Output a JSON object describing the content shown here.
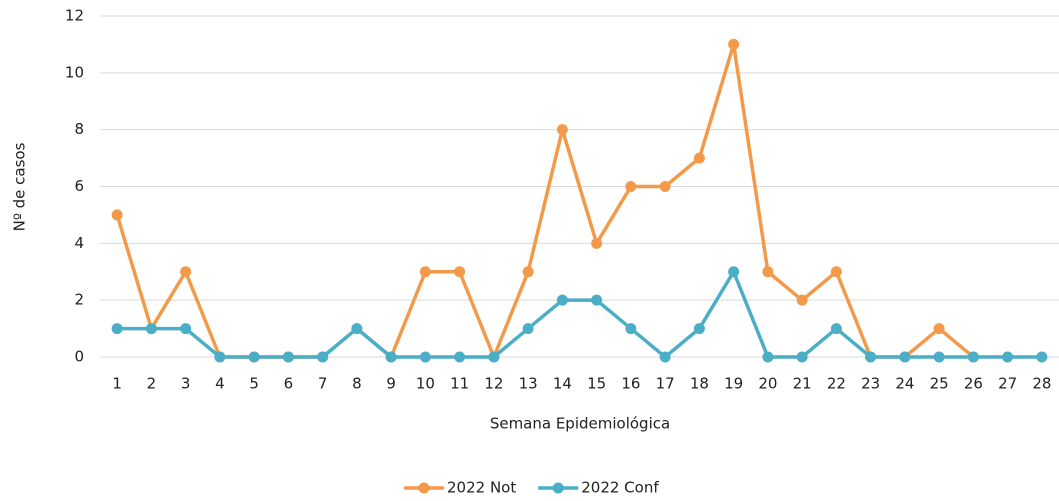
{
  "chart_data": {
    "type": "line",
    "x_label": "Semana Epidemiológica",
    "y_label": "Nº de casos",
    "categories": [
      "1",
      "2",
      "3",
      "4",
      "5",
      "6",
      "7",
      "8",
      "9",
      "10",
      "11",
      "12",
      "13",
      "14",
      "15",
      "16",
      "17",
      "18",
      "19",
      "20",
      "21",
      "22",
      "23",
      "24",
      "25",
      "26",
      "27",
      "28"
    ],
    "series": [
      {
        "name": "2022 Not",
        "color": "#f39a4a",
        "values": [
          5,
          1,
          3,
          0,
          0,
          0,
          0,
          1,
          0,
          3,
          3,
          0,
          3,
          8,
          4,
          6,
          6,
          7,
          11,
          3,
          2,
          3,
          0,
          0,
          1,
          0,
          null,
          null
        ]
      },
      {
        "name": "2022 Conf",
        "color": "#4aaec6",
        "values": [
          1,
          1,
          1,
          0,
          0,
          0,
          0,
          1,
          0,
          0,
          0,
          0,
          1,
          2,
          2,
          1,
          0,
          1,
          3,
          0,
          0,
          1,
          0,
          0,
          0,
          0,
          0,
          0
        ]
      }
    ],
    "ylim": [
      0,
      12
    ],
    "yticks": [
      0,
      2,
      4,
      6,
      8,
      10,
      12
    ],
    "grid": true,
    "legend": "bottom"
  }
}
